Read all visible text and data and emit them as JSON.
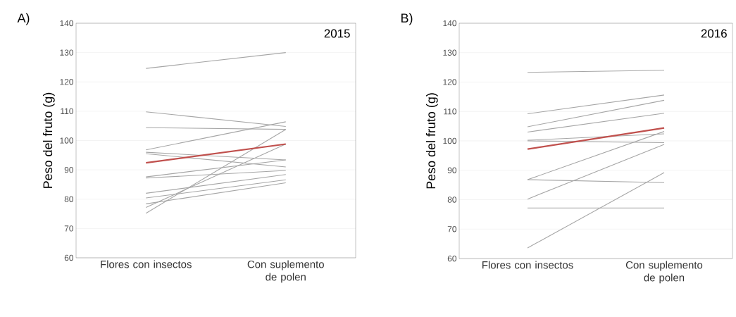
{
  "chart_data": [
    {
      "type": "line",
      "title": "A)",
      "ylabel": "Peso del fruto (g)",
      "categories": [
        "Flores con insectos",
        "Con suplemento de polen"
      ],
      "ylim": [
        60,
        140
      ],
      "yticks": [
        60,
        70,
        80,
        90,
        100,
        110,
        120,
        130,
        140
      ],
      "grid": "y",
      "annotations": [
        "2015"
      ],
      "series": [
        {
          "color": "#a6a6a6",
          "values": [
            124.6,
            130
          ]
        },
        {
          "color": "#a6a6a6",
          "values": [
            109.8,
            104.8
          ]
        },
        {
          "color": "#a6a6a6",
          "values": [
            104.4,
            103.8
          ]
        },
        {
          "color": "#a6a6a6",
          "values": [
            96.8,
            106.4
          ]
        },
        {
          "color": "#a6a6a6",
          "values": [
            96,
            93.4
          ]
        },
        {
          "color": "#a6a6a6",
          "values": [
            95.5,
            91
          ]
        },
        {
          "color": "#a6a6a6",
          "values": [
            87.6,
            93.4
          ]
        },
        {
          "color": "#a6a6a6",
          "values": [
            87.2,
            89.8
          ]
        },
        {
          "color": "#a6a6a6",
          "values": [
            82,
            88.4
          ]
        },
        {
          "color": "#a6a6a6",
          "values": [
            80.4,
            86.6
          ]
        },
        {
          "color": "#a6a6a6",
          "values": [
            78.4,
            85.6
          ]
        },
        {
          "color": "#a6a6a6",
          "values": [
            77.2,
            98.8
          ]
        },
        {
          "color": "#a6a6a6",
          "values": [
            75.2,
            103.8
          ]
        },
        {
          "color": "#c0504d",
          "values": [
            92.4,
            98.8
          ]
        }
      ]
    },
    {
      "type": "line",
      "title": "B)",
      "ylabel": "Peso del fruto (g)",
      "categories": [
        "Flores con insectos",
        "Con suplemento de polen"
      ],
      "ylim": [
        60,
        140
      ],
      "yticks": [
        60,
        70,
        80,
        90,
        100,
        110,
        120,
        130,
        140
      ],
      "grid": "y",
      "annotations": [
        "2016"
      ],
      "series": [
        {
          "color": "#a6a6a6",
          "values": [
            123.3,
            124
          ]
        },
        {
          "color": "#a6a6a6",
          "values": [
            109.2,
            115.6
          ]
        },
        {
          "color": "#a6a6a6",
          "values": [
            104.8,
            113.8
          ]
        },
        {
          "color": "#a6a6a6",
          "values": [
            103,
            109.4
          ]
        },
        {
          "color": "#a6a6a6",
          "values": [
            100.2,
            102.4
          ]
        },
        {
          "color": "#a6a6a6",
          "values": [
            100,
            99.4
          ]
        },
        {
          "color": "#a6a6a6",
          "values": [
            86.8,
            103.2
          ]
        },
        {
          "color": "#a6a6a6",
          "values": [
            86.8,
            85.8
          ]
        },
        {
          "color": "#a6a6a6",
          "values": [
            80.2,
            98.8
          ]
        },
        {
          "color": "#a6a6a6",
          "values": [
            77.2,
            77.2
          ]
        },
        {
          "color": "#a6a6a6",
          "values": [
            63.6,
            89.2
          ]
        },
        {
          "color": "#c0504d",
          "values": [
            97.2,
            104.4
          ]
        }
      ]
    }
  ]
}
